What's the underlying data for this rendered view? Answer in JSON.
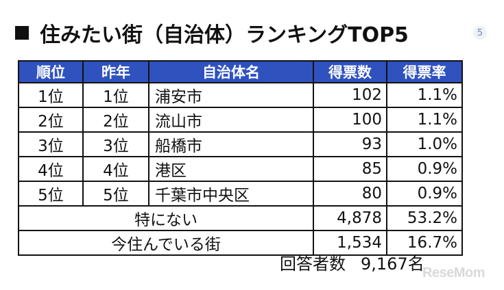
{
  "title": "住みたい街（自治体）ランキングTOP5",
  "badge_icon": "number-badge-icon",
  "table": {
    "headers": [
      "順位",
      "昨年",
      "自治体名",
      "得票数",
      "得票率"
    ],
    "header_color": "#2f52bf",
    "rows": [
      {
        "rank": "1位",
        "prev": "1位",
        "name": "浦安市",
        "votes": "102",
        "rate": "1.1%"
      },
      {
        "rank": "2位",
        "prev": "2位",
        "name": "流山市",
        "votes": "100",
        "rate": "1.1%"
      },
      {
        "rank": "3位",
        "prev": "3位",
        "name": "船橋市",
        "votes": "93",
        "rate": "1.0%"
      },
      {
        "rank": "4位",
        "prev": "4位",
        "name": "港区",
        "votes": "85",
        "rate": "0.9%"
      },
      {
        "rank": "5位",
        "prev": "5位",
        "name": "千葉市中央区",
        "votes": "80",
        "rate": "0.9%"
      }
    ],
    "extra_rows": [
      {
        "label": "特にない",
        "votes": "4,878",
        "rate": "53.2%"
      },
      {
        "label": "今住んでいる街",
        "votes": "1,534",
        "rate": "16.7%"
      }
    ]
  },
  "respondents": {
    "label": "回答者数",
    "value": "9,167名"
  },
  "brand": "ReseMom"
}
